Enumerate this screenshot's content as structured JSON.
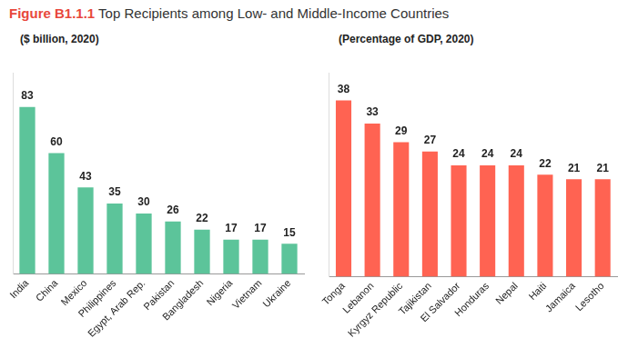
{
  "figure": {
    "label": "Figure B1.1.1",
    "title": "Top Recipients among Low- and Middle-Income Countries"
  },
  "chart_data": [
    {
      "type": "bar",
      "title": "($ billion, 2020)",
      "categories": [
        "India",
        "China",
        "Mexico",
        "Philippines",
        "Egypt, Arab Rep.",
        "Pakistan",
        "Bangladesh",
        "Nigeria",
        "Vietnam",
        "Ukraine"
      ],
      "values": [
        83,
        60,
        43,
        35,
        30,
        26,
        22,
        17,
        17,
        15
      ],
      "color": "#5cc49a",
      "ylim": [
        0,
        100
      ],
      "yticks": [],
      "grid": false,
      "data_labels": true,
      "tick_labels": "x"
    },
    {
      "type": "bar",
      "title": "(Percentage of GDP, 2020)",
      "categories": [
        "Tonga",
        "Lebanon",
        "Kyrgyz Republic",
        "Tajikistan",
        "El Salvador",
        "Honduras",
        "Nepal",
        "Haiti",
        "Jamaica",
        "Lesotho"
      ],
      "values": [
        38,
        33,
        29,
        27,
        24,
        24,
        24,
        22,
        21,
        21
      ],
      "color": "#ff6352",
      "ylim": [
        0,
        44
      ],
      "yticks": [],
      "grid": false,
      "data_labels": true,
      "tick_labels": "x"
    }
  ]
}
